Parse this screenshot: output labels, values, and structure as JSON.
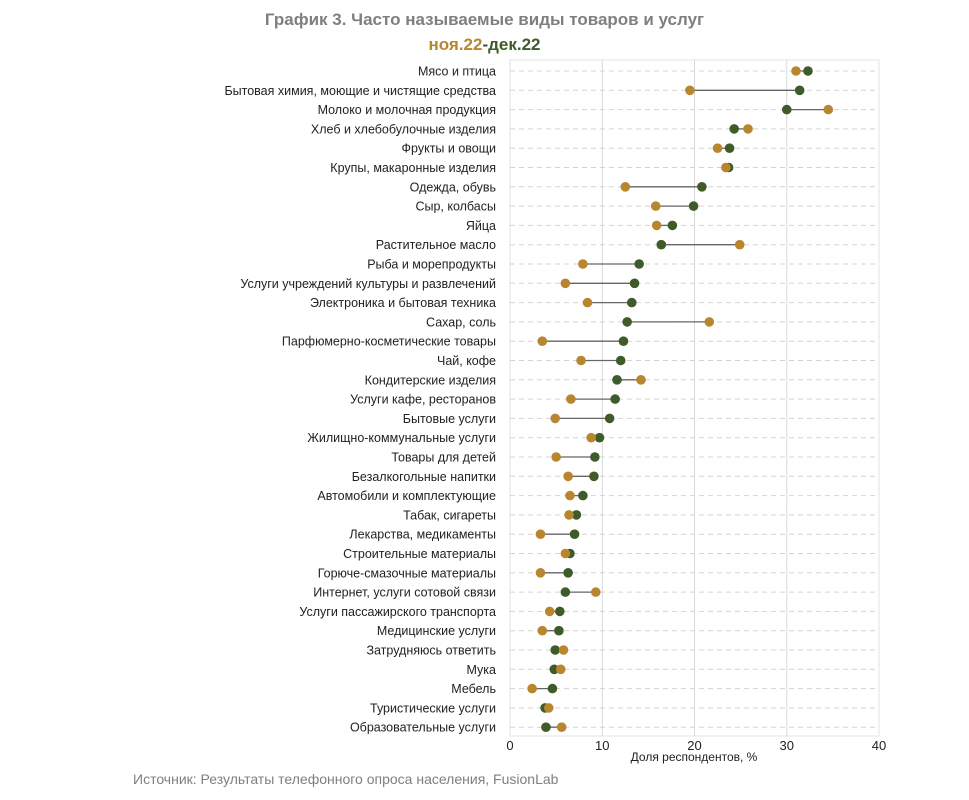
{
  "chart_data": {
    "type": "dumbbell",
    "title": "График 3. Часто называемые виды товаров и услуг",
    "subtitle": {
      "series1": "ноя.22",
      "separator": "-",
      "series2": "дек.22"
    },
    "xlabel": "Доля респондентов, %",
    "xlim": [
      0,
      40
    ],
    "xticks": [
      0,
      10,
      20,
      30,
      40
    ],
    "categories": [
      "Мясо и птица",
      "Бытовая химия, моющие и чистящие средства",
      "Молоко и молочная продукция",
      "Хлеб и хлебобулочные изделия",
      "Фрукты и овощи",
      "Крупы, макаронные изделия",
      "Одежда, обувь",
      "Сыр, колбасы",
      "Яйца",
      "Растительное масло",
      "Рыба и морепродукты",
      "Услуги учреждений культуры и развлечений",
      "Электроника и бытовая техника",
      "Сахар, соль",
      "Парфюмерно-косметические товары",
      "Чай, кофе",
      "Кондитерские изделия",
      "Услуги кафе, ресторанов",
      "Бытовые услуги",
      "Жилищно-коммунальные услуги",
      "Товары для детей",
      "Безалкогольные напитки",
      "Автомобили и комплектующие",
      "Табак, сигареты",
      "Лекарства, медикаменты",
      "Строительные материалы",
      "Горюче-смазочные материалы",
      "Интернет, услуги сотовой связи",
      "Услуги пассажирского транспорта",
      "Медицинские услуги",
      "Затрудняюсь ответить",
      "Мука",
      "Мебель",
      "Туристические услуги",
      "Образовательные услуги"
    ],
    "series": [
      {
        "name": "ноя.22",
        "color": "#b8862f",
        "values": [
          31.0,
          19.5,
          34.5,
          25.8,
          22.5,
          23.4,
          12.5,
          15.8,
          15.9,
          24.9,
          7.9,
          6.0,
          8.4,
          21.6,
          3.5,
          7.7,
          14.2,
          6.6,
          4.9,
          8.8,
          5.0,
          6.3,
          6.5,
          6.4,
          3.3,
          6.0,
          3.3,
          9.3,
          4.3,
          3.5,
          5.8,
          5.5,
          2.4,
          4.2,
          5.6
        ]
      },
      {
        "name": "дек.22",
        "color": "#3f5b2a",
        "values": [
          32.3,
          31.4,
          30.0,
          24.3,
          23.8,
          23.7,
          20.8,
          19.9,
          17.6,
          16.4,
          14.0,
          13.5,
          13.2,
          12.7,
          12.3,
          12.0,
          11.6,
          11.4,
          10.8,
          9.7,
          9.2,
          9.1,
          7.9,
          7.2,
          7.0,
          6.5,
          6.3,
          6.0,
          5.4,
          5.3,
          4.9,
          4.8,
          4.6,
          3.8,
          3.9
        ]
      }
    ]
  },
  "source": "Источник: Результаты телефонного опроса населения, FusionLab"
}
